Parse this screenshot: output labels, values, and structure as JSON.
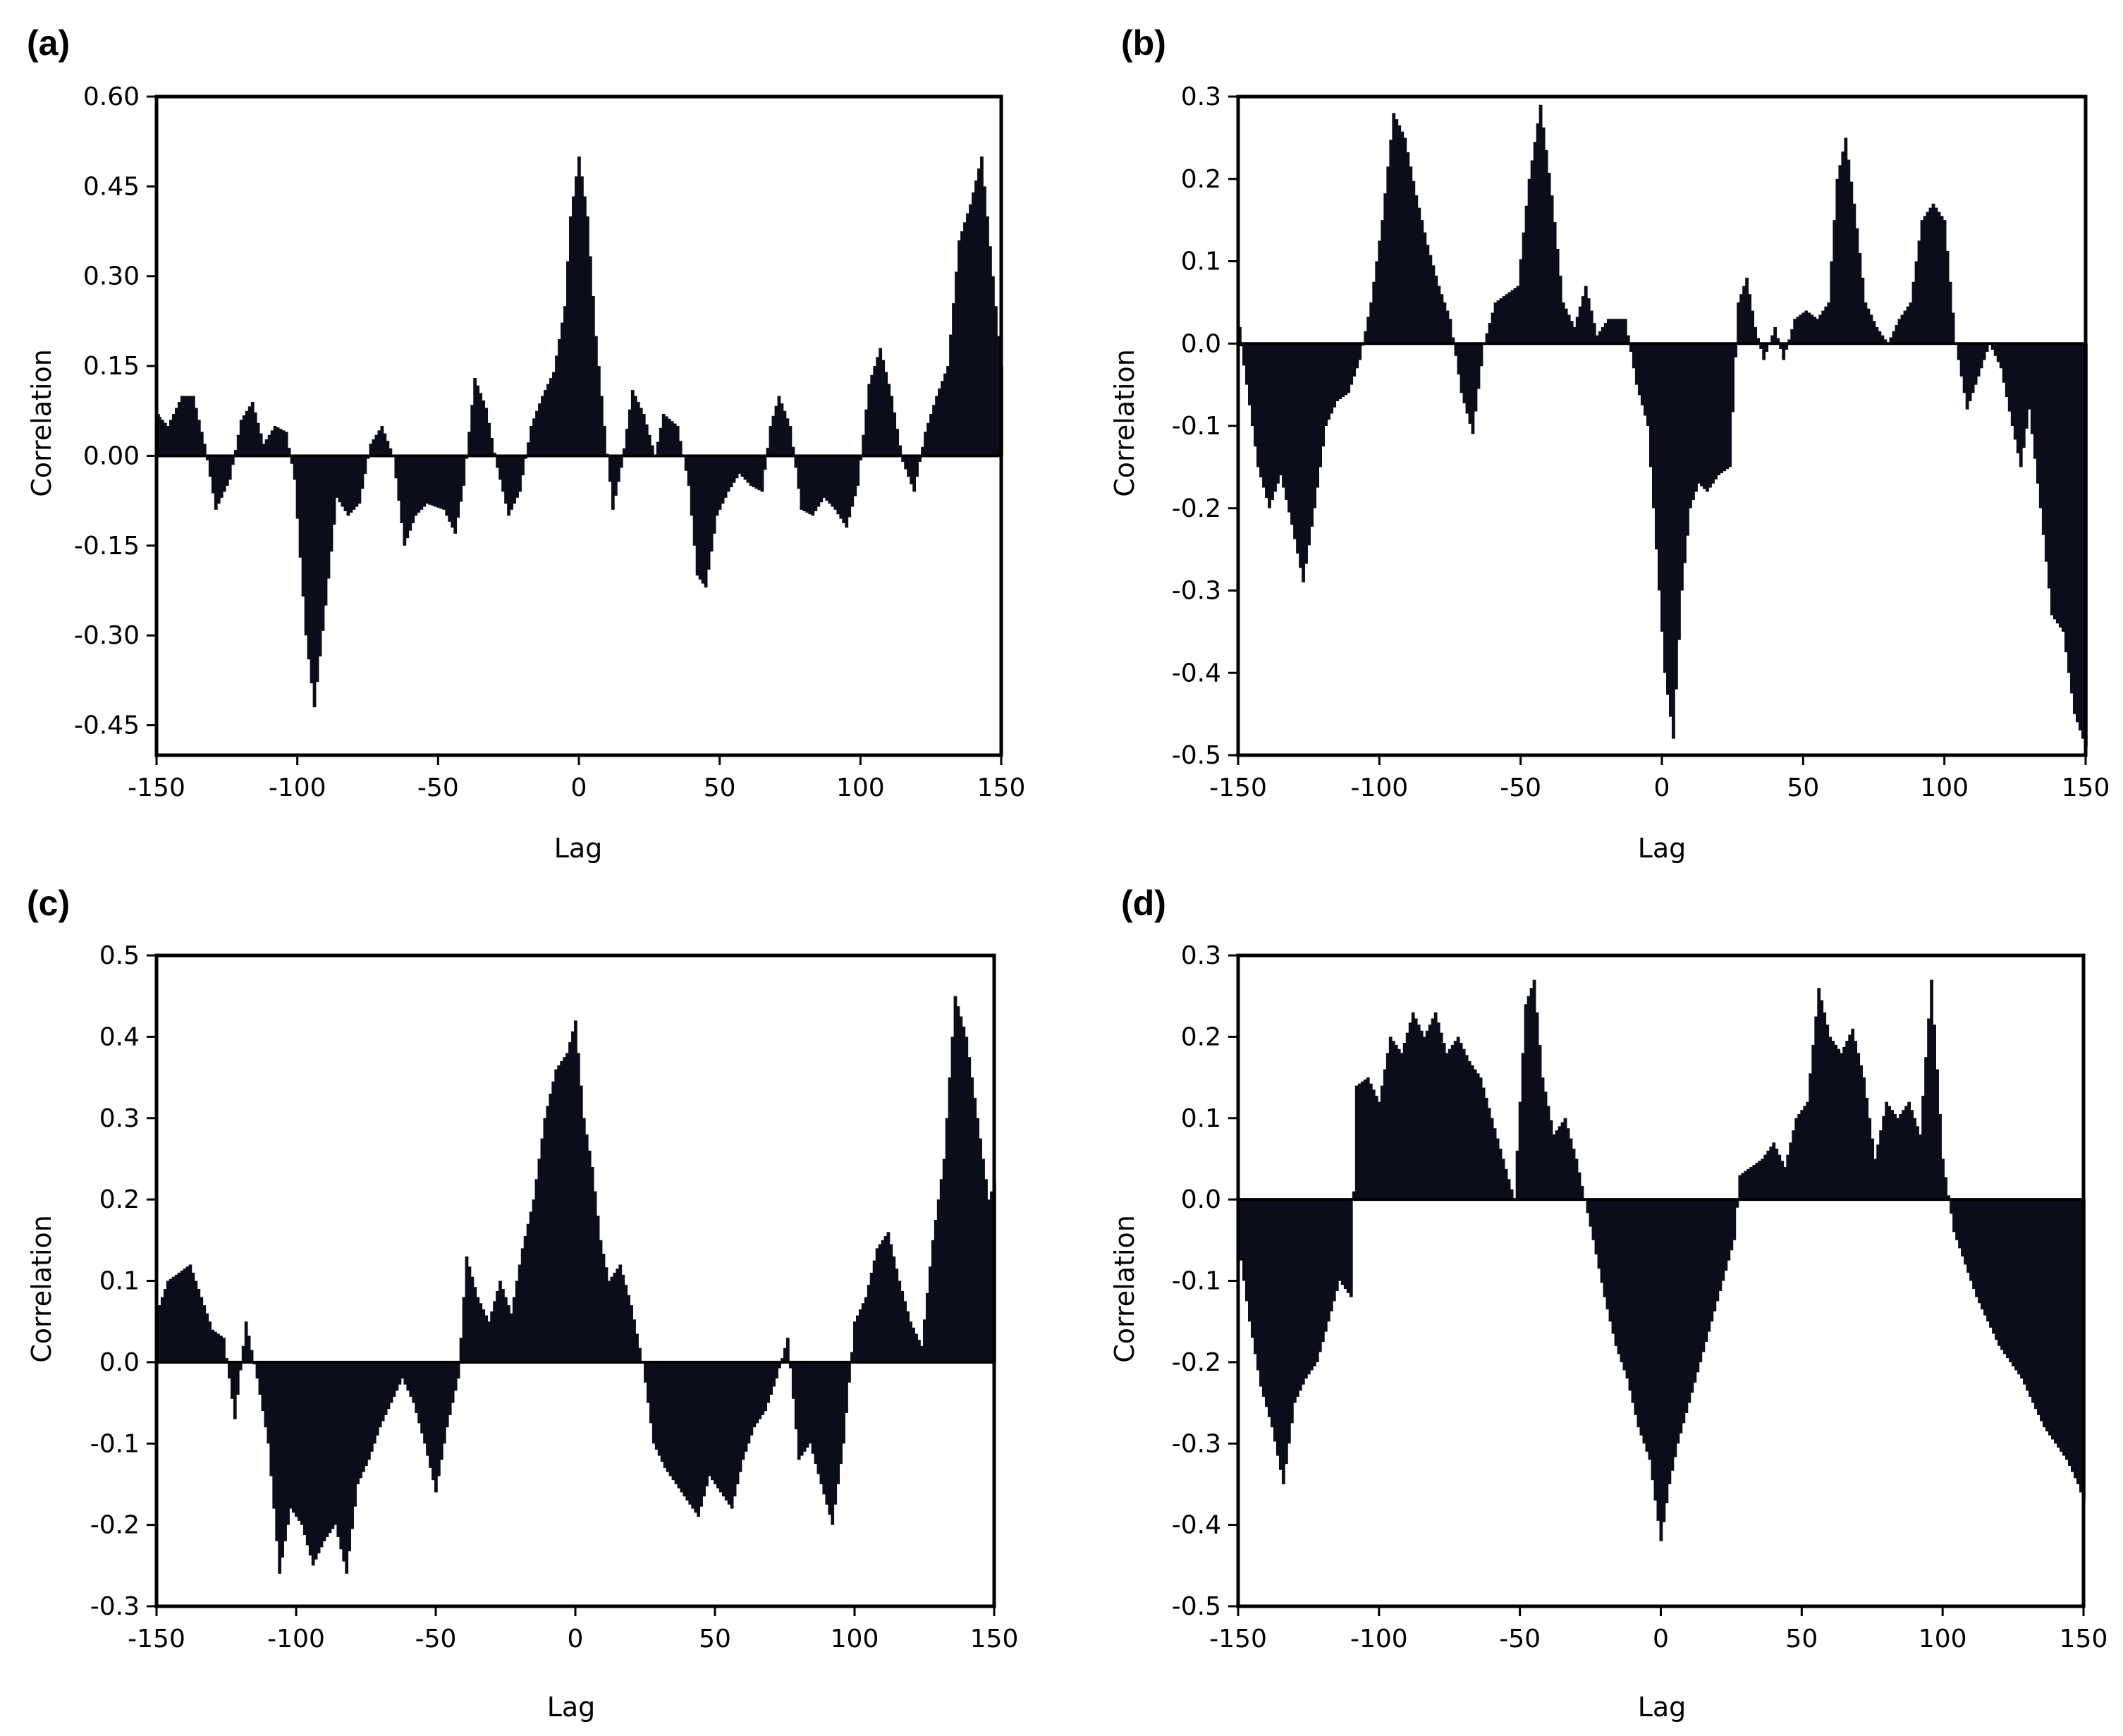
{
  "chart_data": [
    {
      "type": "bar",
      "panel_label": "(a)",
      "xlabel": "Lag",
      "ylabel": "Correlation",
      "xlim": [
        -150,
        150
      ],
      "ylim": [
        -0.5,
        0.6
      ],
      "xticks": [
        -150,
        -100,
        -50,
        0,
        50,
        100,
        150
      ],
      "yticks": [
        -0.45,
        -0.3,
        -0.15,
        0.0,
        0.15,
        0.3,
        0.45,
        0.6
      ],
      "ytick_labels": [
        "-0.45",
        "-0.30",
        "-0.15",
        "0.00",
        "0.15",
        "0.30",
        "0.45",
        "0.60"
      ],
      "xtick_labels": [
        "-150",
        "-100",
        "-50",
        "0",
        "50",
        "100",
        "150"
      ],
      "grid": false,
      "profile": [
        [
          -150,
          0.07
        ],
        [
          -146,
          0.05
        ],
        [
          -141,
          0.1
        ],
        [
          -137,
          0.1
        ],
        [
          -133,
          0.02
        ],
        [
          -129,
          -0.09
        ],
        [
          -124,
          -0.04
        ],
        [
          -120,
          0.06
        ],
        [
          -116,
          0.09
        ],
        [
          -112,
          0.02
        ],
        [
          -108,
          0.05
        ],
        [
          -104,
          0.04
        ],
        [
          -101,
          -0.04
        ],
        [
          -97,
          -0.3
        ],
        [
          -94,
          -0.42
        ],
        [
          -90,
          -0.25
        ],
        [
          -86,
          -0.07
        ],
        [
          -82,
          -0.1
        ],
        [
          -78,
          -0.08
        ],
        [
          -74,
          0.02
        ],
        [
          -70,
          0.05
        ],
        [
          -66,
          0.0
        ],
        [
          -62,
          -0.15
        ],
        [
          -58,
          -0.1
        ],
        [
          -54,
          -0.08
        ],
        [
          -48,
          -0.09
        ],
        [
          -44,
          -0.13
        ],
        [
          -41,
          -0.05
        ],
        [
          -37,
          0.13
        ],
        [
          -33,
          0.08
        ],
        [
          -29,
          -0.02
        ],
        [
          -25,
          -0.1
        ],
        [
          -21,
          -0.06
        ],
        [
          -17,
          0.05
        ],
        [
          -13,
          0.1
        ],
        [
          -9,
          0.14
        ],
        [
          -5,
          0.25
        ],
        [
          -3,
          0.4
        ],
        [
          0,
          0.5
        ],
        [
          3,
          0.4
        ],
        [
          6,
          0.2
        ],
        [
          9,
          0.05
        ],
        [
          12,
          -0.09
        ],
        [
          15,
          -0.02
        ],
        [
          19,
          0.11
        ],
        [
          23,
          0.07
        ],
        [
          27,
          0.0
        ],
        [
          30,
          0.07
        ],
        [
          35,
          0.05
        ],
        [
          39,
          -0.05
        ],
        [
          42,
          -0.2
        ],
        [
          45,
          -0.22
        ],
        [
          49,
          -0.1
        ],
        [
          53,
          -0.06
        ],
        [
          57,
          -0.03
        ],
        [
          61,
          -0.05
        ],
        [
          65,
          -0.06
        ],
        [
          68,
          0.05
        ],
        [
          71,
          0.1
        ],
        [
          75,
          0.05
        ],
        [
          79,
          -0.09
        ],
        [
          83,
          -0.1
        ],
        [
          87,
          -0.07
        ],
        [
          91,
          -0.09
        ],
        [
          95,
          -0.12
        ],
        [
          99,
          -0.05
        ],
        [
          103,
          0.12
        ],
        [
          107,
          0.18
        ],
        [
          111,
          0.1
        ],
        [
          115,
          -0.01
        ],
        [
          119,
          -0.06
        ],
        [
          123,
          0.04
        ],
        [
          127,
          0.1
        ],
        [
          131,
          0.15
        ],
        [
          135,
          0.36
        ],
        [
          139,
          0.42
        ],
        [
          143,
          0.5
        ],
        [
          147,
          0.3
        ],
        [
          150,
          0.15
        ]
      ]
    },
    {
      "type": "bar",
      "panel_label": "(b)",
      "xlabel": "Lag",
      "ylabel": "Correlation",
      "xlim": [
        -150,
        150
      ],
      "ylim": [
        -0.5,
        0.3
      ],
      "xticks": [
        -150,
        -100,
        -50,
        0,
        50,
        100,
        150
      ],
      "yticks": [
        -0.5,
        -0.4,
        -0.3,
        -0.2,
        -0.1,
        0.0,
        0.1,
        0.2,
        0.3
      ],
      "ytick_labels": [
        "-0.5",
        "-0.4",
        "-0.3",
        "-0.2",
        "-0.1",
        "0.0",
        "0.1",
        "0.2",
        "0.3"
      ],
      "xtick_labels": [
        "-150",
        "-100",
        "-50",
        "0",
        "50",
        "100",
        "150"
      ],
      "grid": false,
      "profile": [
        [
          -150,
          0.02
        ],
        [
          -147,
          -0.05
        ],
        [
          -143,
          -0.15
        ],
        [
          -139,
          -0.2
        ],
        [
          -135,
          -0.16
        ],
        [
          -131,
          -0.22
        ],
        [
          -127,
          -0.29
        ],
        [
          -123,
          -0.2
        ],
        [
          -119,
          -0.1
        ],
        [
          -115,
          -0.07
        ],
        [
          -111,
          -0.06
        ],
        [
          -107,
          -0.02
        ],
        [
          -103,
          0.05
        ],
        [
          -99,
          0.15
        ],
        [
          -95,
          0.28
        ],
        [
          -91,
          0.25
        ],
        [
          -87,
          0.18
        ],
        [
          -83,
          0.12
        ],
        [
          -79,
          0.07
        ],
        [
          -75,
          0.03
        ],
        [
          -71,
          -0.06
        ],
        [
          -67,
          -0.11
        ],
        [
          -63,
          0.0
        ],
        [
          -59,
          0.05
        ],
        [
          -55,
          0.06
        ],
        [
          -51,
          0.07
        ],
        [
          -47,
          0.2
        ],
        [
          -43,
          0.29
        ],
        [
          -39,
          0.18
        ],
        [
          -35,
          0.05
        ],
        [
          -31,
          0.02
        ],
        [
          -27,
          0.07
        ],
        [
          -23,
          0.01
        ],
        [
          -19,
          0.03
        ],
        [
          -13,
          0.03
        ],
        [
          -9,
          -0.05
        ],
        [
          -5,
          -0.1
        ],
        [
          -2,
          -0.25
        ],
        [
          1,
          -0.4
        ],
        [
          4,
          -0.48
        ],
        [
          7,
          -0.3
        ],
        [
          10,
          -0.2
        ],
        [
          13,
          -0.17
        ],
        [
          16,
          -0.18
        ],
        [
          20,
          -0.16
        ],
        [
          24,
          -0.15
        ],
        [
          27,
          0.05
        ],
        [
          30,
          0.08
        ],
        [
          33,
          0.02
        ],
        [
          36,
          -0.02
        ],
        [
          40,
          0.02
        ],
        [
          43,
          -0.02
        ],
        [
          47,
          0.03
        ],
        [
          51,
          0.04
        ],
        [
          55,
          0.03
        ],
        [
          59,
          0.05
        ],
        [
          62,
          0.2
        ],
        [
          65,
          0.25
        ],
        [
          68,
          0.17
        ],
        [
          72,
          0.05
        ],
        [
          76,
          0.02
        ],
        [
          80,
          0.0
        ],
        [
          84,
          0.03
        ],
        [
          88,
          0.05
        ],
        [
          92,
          0.15
        ],
        [
          96,
          0.17
        ],
        [
          100,
          0.15
        ],
        [
          104,
          0.0
        ],
        [
          108,
          -0.08
        ],
        [
          112,
          -0.04
        ],
        [
          116,
          0.0
        ],
        [
          120,
          -0.03
        ],
        [
          124,
          -0.1
        ],
        [
          127,
          -0.15
        ],
        [
          130,
          -0.08
        ],
        [
          134,
          -0.2
        ],
        [
          138,
          -0.33
        ],
        [
          142,
          -0.35
        ],
        [
          146,
          -0.45
        ],
        [
          150,
          -0.49
        ]
      ]
    },
    {
      "type": "bar",
      "panel_label": "(c)",
      "xlabel": "Lag",
      "ylabel": "Correlation",
      "xlim": [
        -150,
        150
      ],
      "ylim": [
        -0.3,
        0.5
      ],
      "xticks": [
        -150,
        -100,
        -50,
        0,
        50,
        100,
        150
      ],
      "yticks": [
        -0.3,
        -0.2,
        -0.1,
        0.0,
        0.1,
        0.2,
        0.3,
        0.4,
        0.5
      ],
      "ytick_labels": [
        "-0.3",
        "-0.2",
        "-0.1",
        "0.0",
        "0.1",
        "0.2",
        "0.3",
        "0.4",
        "0.5"
      ],
      "xtick_labels": [
        "-150",
        "-100",
        "-50",
        "0",
        "50",
        "100",
        "150"
      ],
      "grid": false,
      "profile": [
        [
          -150,
          0.06
        ],
        [
          -146,
          0.1
        ],
        [
          -142,
          0.11
        ],
        [
          -138,
          0.12
        ],
        [
          -134,
          0.08
        ],
        [
          -130,
          0.04
        ],
        [
          -126,
          0.03
        ],
        [
          -122,
          -0.07
        ],
        [
          -118,
          0.05
        ],
        [
          -114,
          -0.02
        ],
        [
          -110,
          -0.1
        ],
        [
          -106,
          -0.26
        ],
        [
          -102,
          -0.18
        ],
        [
          -98,
          -0.2
        ],
        [
          -94,
          -0.25
        ],
        [
          -90,
          -0.22
        ],
        [
          -86,
          -0.2
        ],
        [
          -82,
          -0.26
        ],
        [
          -78,
          -0.15
        ],
        [
          -74,
          -0.12
        ],
        [
          -70,
          -0.08
        ],
        [
          -66,
          -0.05
        ],
        [
          -62,
          -0.02
        ],
        [
          -58,
          -0.05
        ],
        [
          -54,
          -0.1
        ],
        [
          -50,
          -0.16
        ],
        [
          -46,
          -0.08
        ],
        [
          -42,
          -0.02
        ],
        [
          -39,
          0.13
        ],
        [
          -35,
          0.08
        ],
        [
          -31,
          0.05
        ],
        [
          -27,
          0.1
        ],
        [
          -23,
          0.06
        ],
        [
          -19,
          0.14
        ],
        [
          -15,
          0.2
        ],
        [
          -11,
          0.3
        ],
        [
          -7,
          0.36
        ],
        [
          -3,
          0.38
        ],
        [
          0,
          0.42
        ],
        [
          3,
          0.3
        ],
        [
          6,
          0.24
        ],
        [
          9,
          0.15
        ],
        [
          12,
          0.1
        ],
        [
          16,
          0.12
        ],
        [
          20,
          0.07
        ],
        [
          24,
          0.0
        ],
        [
          28,
          -0.1
        ],
        [
          32,
          -0.13
        ],
        [
          36,
          -0.15
        ],
        [
          40,
          -0.17
        ],
        [
          44,
          -0.19
        ],
        [
          48,
          -0.14
        ],
        [
          52,
          -0.16
        ],
        [
          56,
          -0.18
        ],
        [
          60,
          -0.12
        ],
        [
          64,
          -0.08
        ],
        [
          68,
          -0.06
        ],
        [
          72,
          -0.02
        ],
        [
          76,
          0.03
        ],
        [
          80,
          -0.12
        ],
        [
          84,
          -0.1
        ],
        [
          88,
          -0.15
        ],
        [
          92,
          -0.2
        ],
        [
          96,
          -0.1
        ],
        [
          100,
          0.05
        ],
        [
          104,
          0.08
        ],
        [
          108,
          0.14
        ],
        [
          112,
          0.16
        ],
        [
          116,
          0.1
        ],
        [
          120,
          0.05
        ],
        [
          124,
          0.02
        ],
        [
          128,
          0.15
        ],
        [
          132,
          0.25
        ],
        [
          136,
          0.45
        ],
        [
          140,
          0.4
        ],
        [
          144,
          0.3
        ],
        [
          148,
          0.2
        ],
        [
          150,
          0.22
        ]
      ]
    },
    {
      "type": "bar",
      "panel_label": "(d)",
      "xlabel": "Lag",
      "ylabel": "Correlation",
      "xlim": [
        -150,
        150
      ],
      "ylim": [
        -0.5,
        0.3
      ],
      "xticks": [
        -150,
        -100,
        -50,
        0,
        50,
        100,
        150
      ],
      "yticks": [
        -0.5,
        -0.4,
        -0.3,
        -0.2,
        -0.1,
        0.0,
        0.1,
        0.2,
        0.3
      ],
      "ytick_labels": [
        "-0.5",
        "-0.4",
        "-0.3",
        "-0.2",
        "-0.1",
        "0.0",
        "0.1",
        "0.2",
        "0.3"
      ],
      "xtick_labels": [
        "-150",
        "-100",
        "-50",
        "0",
        "50",
        "100",
        "150"
      ],
      "grid": false,
      "profile": [
        [
          -150,
          -0.05
        ],
        [
          -146,
          -0.15
        ],
        [
          -142,
          -0.23
        ],
        [
          -138,
          -0.28
        ],
        [
          -134,
          -0.35
        ],
        [
          -130,
          -0.25
        ],
        [
          -126,
          -0.22
        ],
        [
          -122,
          -0.2
        ],
        [
          -118,
          -0.15
        ],
        [
          -114,
          -0.1
        ],
        [
          -110,
          -0.12
        ],
        [
          -108,
          0.14
        ],
        [
          -104,
          0.15
        ],
        [
          -100,
          0.12
        ],
        [
          -96,
          0.2
        ],
        [
          -92,
          0.18
        ],
        [
          -88,
          0.23
        ],
        [
          -84,
          0.2
        ],
        [
          -80,
          0.23
        ],
        [
          -76,
          0.18
        ],
        [
          -72,
          0.2
        ],
        [
          -68,
          0.17
        ],
        [
          -64,
          0.15
        ],
        [
          -60,
          0.1
        ],
        [
          -56,
          0.05
        ],
        [
          -52,
          0.0
        ],
        [
          -48,
          0.24
        ],
        [
          -45,
          0.27
        ],
        [
          -42,
          0.15
        ],
        [
          -38,
          0.08
        ],
        [
          -34,
          0.1
        ],
        [
          -30,
          0.05
        ],
        [
          -27,
          0.0
        ],
        [
          -24,
          -0.05
        ],
        [
          -20,
          -0.12
        ],
        [
          -16,
          -0.18
        ],
        [
          -12,
          -0.22
        ],
        [
          -8,
          -0.28
        ],
        [
          -4,
          -0.32
        ],
        [
          0,
          -0.42
        ],
        [
          3,
          -0.35
        ],
        [
          6,
          -0.3
        ],
        [
          10,
          -0.25
        ],
        [
          14,
          -0.2
        ],
        [
          18,
          -0.15
        ],
        [
          22,
          -0.1
        ],
        [
          26,
          -0.05
        ],
        [
          28,
          0.03
        ],
        [
          32,
          0.04
        ],
        [
          36,
          0.05
        ],
        [
          40,
          0.07
        ],
        [
          44,
          0.04
        ],
        [
          48,
          0.1
        ],
        [
          52,
          0.12
        ],
        [
          56,
          0.26
        ],
        [
          60,
          0.2
        ],
        [
          64,
          0.18
        ],
        [
          68,
          0.21
        ],
        [
          72,
          0.15
        ],
        [
          76,
          0.05
        ],
        [
          80,
          0.12
        ],
        [
          84,
          0.1
        ],
        [
          88,
          0.12
        ],
        [
          92,
          0.08
        ],
        [
          96,
          0.27
        ],
        [
          100,
          0.05
        ],
        [
          104,
          -0.04
        ],
        [
          108,
          -0.08
        ],
        [
          112,
          -0.12
        ],
        [
          116,
          -0.15
        ],
        [
          120,
          -0.18
        ],
        [
          124,
          -0.2
        ],
        [
          128,
          -0.22
        ],
        [
          132,
          -0.25
        ],
        [
          136,
          -0.28
        ],
        [
          140,
          -0.3
        ],
        [
          144,
          -0.32
        ],
        [
          148,
          -0.35
        ],
        [
          150,
          -0.37
        ]
      ]
    }
  ]
}
